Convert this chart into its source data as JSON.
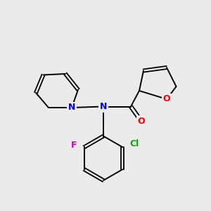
{
  "background_color": "#ebebeb",
  "bond_color": "#000000",
  "atom_colors": {
    "N": "#0000ff",
    "O": "#ff0000",
    "Cl": "#00aa00",
    "F": "#cc00cc"
  }
}
